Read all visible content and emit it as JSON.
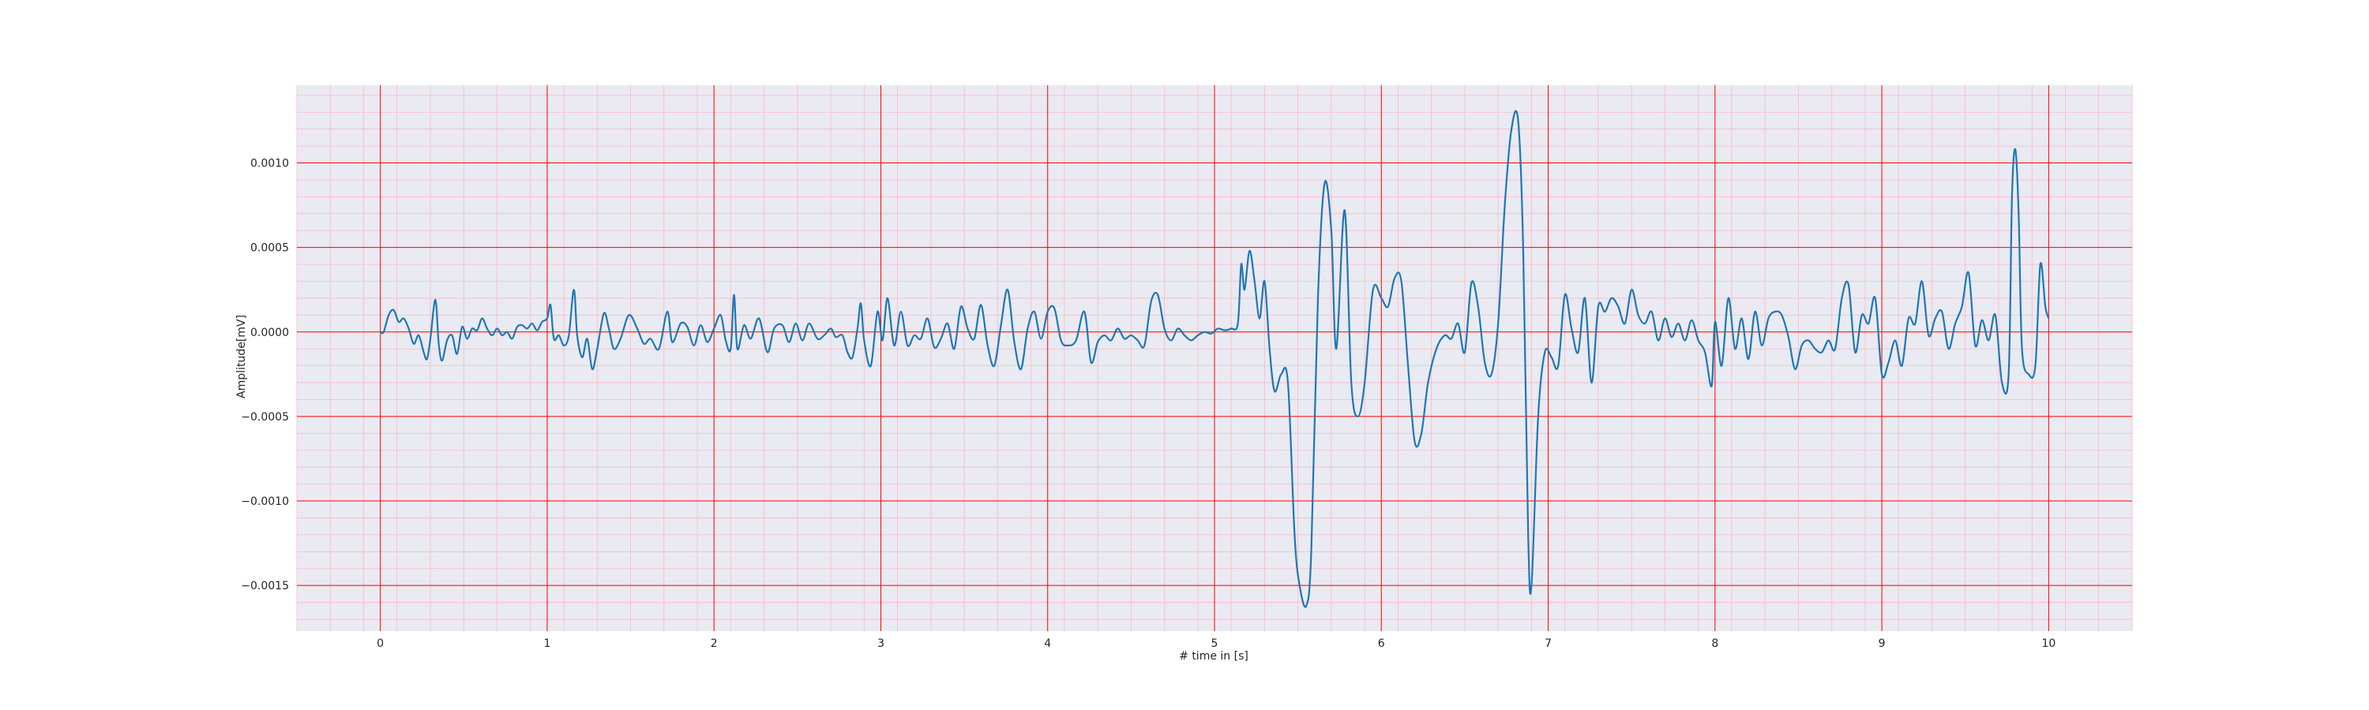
{
  "chart_data": {
    "type": "line",
    "title": "",
    "xlabel": "# time in [s]",
    "ylabel": "Amplitude[mV]",
    "xlim": [
      -0.5,
      10.5
    ],
    "ylim": [
      -0.00177,
      0.00146
    ],
    "x_ticks": [
      0,
      1,
      2,
      3,
      4,
      5,
      6,
      7,
      8,
      9,
      10
    ],
    "x_tick_labels": [
      "0",
      "1",
      "2",
      "3",
      "4",
      "5",
      "6",
      "7",
      "8",
      "9",
      "10"
    ],
    "y_ticks": [
      -0.0015,
      -0.001,
      -0.0005,
      0.0,
      0.0005,
      0.001
    ],
    "y_tick_labels": [
      "−0.0015",
      "−0.0010",
      "−0.0005",
      "0.0000",
      "0.0005",
      "0.0010"
    ],
    "grid": {
      "major": true,
      "minor": true,
      "major_color": "#ff0000",
      "minor_color": "#ffb6c1"
    },
    "background_color": "#eaeaf2",
    "series": [
      {
        "color": "#1f77b4",
        "points": [
          [
            0.0,
            0.0
          ],
          [
            0.02,
            0.0
          ],
          [
            0.05,
            0.0001
          ],
          [
            0.08,
            0.00013
          ],
          [
            0.11,
            6e-05
          ],
          [
            0.14,
            8e-05
          ],
          [
            0.17,
            2e-05
          ],
          [
            0.2,
            -7e-05
          ],
          [
            0.23,
            -2e-05
          ],
          [
            0.26,
            -0.00012
          ],
          [
            0.28,
            -0.00016
          ],
          [
            0.3,
            -4e-05
          ],
          [
            0.33,
            0.00019
          ],
          [
            0.35,
            -7e-05
          ],
          [
            0.37,
            -0.00017
          ],
          [
            0.4,
            -5e-05
          ],
          [
            0.43,
            -2e-05
          ],
          [
            0.46,
            -0.00013
          ],
          [
            0.49,
            3e-05
          ],
          [
            0.52,
            -4e-05
          ],
          [
            0.55,
            2e-05
          ],
          [
            0.58,
            1e-05
          ],
          [
            0.61,
            8e-05
          ],
          [
            0.64,
            2e-05
          ],
          [
            0.67,
            -2e-05
          ],
          [
            0.7,
            2e-05
          ],
          [
            0.73,
            -2e-05
          ],
          [
            0.76,
            0.0
          ],
          [
            0.79,
            -4e-05
          ],
          [
            0.82,
            3e-05
          ],
          [
            0.85,
            4e-05
          ],
          [
            0.88,
            2e-05
          ],
          [
            0.91,
            5e-05
          ],
          [
            0.94,
            1e-05
          ],
          [
            0.97,
            6e-05
          ],
          [
            1.0,
            8e-05
          ],
          [
            1.02,
            0.00016
          ],
          [
            1.04,
            -4e-05
          ],
          [
            1.07,
            -2e-05
          ],
          [
            1.1,
            -8e-05
          ],
          [
            1.13,
            -2e-05
          ],
          [
            1.16,
            0.00025
          ],
          [
            1.18,
            -2e-05
          ],
          [
            1.21,
            -0.00015
          ],
          [
            1.24,
            -4e-05
          ],
          [
            1.27,
            -0.00022
          ],
          [
            1.3,
            -0.0001
          ],
          [
            1.34,
            0.00011
          ],
          [
            1.37,
            2e-05
          ],
          [
            1.4,
            -0.0001
          ],
          [
            1.44,
            -4e-05
          ],
          [
            1.49,
            0.0001
          ],
          [
            1.54,
            2e-05
          ],
          [
            1.58,
            -7e-05
          ],
          [
            1.62,
            -4e-05
          ],
          [
            1.67,
            -0.0001
          ],
          [
            1.72,
            0.00012
          ],
          [
            1.75,
            -6e-05
          ],
          [
            1.8,
            5e-05
          ],
          [
            1.84,
            3e-05
          ],
          [
            1.88,
            -8e-05
          ],
          [
            1.92,
            4e-05
          ],
          [
            1.96,
            -6e-05
          ],
          [
            2.0,
            2e-05
          ],
          [
            2.04,
            0.0001
          ],
          [
            2.07,
            -5e-05
          ],
          [
            2.1,
            -0.0001
          ],
          [
            2.12,
            0.00022
          ],
          [
            2.14,
            -0.0001
          ],
          [
            2.18,
            4e-05
          ],
          [
            2.22,
            -4e-05
          ],
          [
            2.27,
            8e-05
          ],
          [
            2.32,
            -0.00012
          ],
          [
            2.36,
            2e-05
          ],
          [
            2.41,
            4e-05
          ],
          [
            2.45,
            -6e-05
          ],
          [
            2.49,
            5e-05
          ],
          [
            2.53,
            -5e-05
          ],
          [
            2.57,
            5e-05
          ],
          [
            2.62,
            -4e-05
          ],
          [
            2.66,
            -2e-05
          ],
          [
            2.7,
            2e-05
          ],
          [
            2.73,
            -3e-05
          ],
          [
            2.77,
            -2e-05
          ],
          [
            2.8,
            -0.00012
          ],
          [
            2.83,
            -0.00015
          ],
          [
            2.86,
            2e-05
          ],
          [
            2.88,
            0.00017
          ],
          [
            2.9,
            -5e-05
          ],
          [
            2.94,
            -0.0002
          ],
          [
            2.98,
            0.00012
          ],
          [
            3.01,
            -5e-05
          ],
          [
            3.04,
            0.0002
          ],
          [
            3.08,
            -8e-05
          ],
          [
            3.12,
            0.00012
          ],
          [
            3.16,
            -8e-05
          ],
          [
            3.2,
            -2e-05
          ],
          [
            3.24,
            -4e-05
          ],
          [
            3.28,
            8e-05
          ],
          [
            3.32,
            -9e-05
          ],
          [
            3.36,
            -4e-05
          ],
          [
            3.4,
            5e-05
          ],
          [
            3.44,
            -0.0001
          ],
          [
            3.48,
            0.00015
          ],
          [
            3.52,
            2e-05
          ],
          [
            3.56,
            -4e-05
          ],
          [
            3.6,
            0.00016
          ],
          [
            3.64,
            -8e-05
          ],
          [
            3.68,
            -0.0002
          ],
          [
            3.72,
            4e-05
          ],
          [
            3.76,
            0.00025
          ],
          [
            3.8,
            -6e-05
          ],
          [
            3.84,
            -0.00022
          ],
          [
            3.88,
            2e-05
          ],
          [
            3.92,
            0.00012
          ],
          [
            3.96,
            -4e-05
          ],
          [
            4.0,
            0.00012
          ],
          [
            4.04,
            0.00014
          ],
          [
            4.08,
            -5e-05
          ],
          [
            4.12,
            -8e-05
          ],
          [
            4.17,
            -5e-05
          ],
          [
            4.22,
            0.00012
          ],
          [
            4.26,
            -0.00018
          ],
          [
            4.3,
            -6e-05
          ],
          [
            4.34,
            -2e-05
          ],
          [
            4.38,
            -5e-05
          ],
          [
            4.42,
            2e-05
          ],
          [
            4.46,
            -4e-05
          ],
          [
            4.5,
            -2e-05
          ],
          [
            4.54,
            -5e-05
          ],
          [
            4.58,
            -8e-05
          ],
          [
            4.62,
            0.00018
          ],
          [
            4.66,
            0.00022
          ],
          [
            4.7,
            2e-05
          ],
          [
            4.74,
            -5e-05
          ],
          [
            4.78,
            2e-05
          ],
          [
            4.82,
            -2e-05
          ],
          [
            4.86,
            -5e-05
          ],
          [
            4.9,
            -2e-05
          ],
          [
            4.94,
            0.0
          ],
          [
            4.98,
            -1e-05
          ],
          [
            5.02,
            2e-05
          ],
          [
            5.06,
            1e-05
          ],
          [
            5.1,
            2e-05
          ],
          [
            5.14,
            5e-05
          ],
          [
            5.16,
            0.0004
          ],
          [
            5.18,
            0.00025
          ],
          [
            5.21,
            0.00048
          ],
          [
            5.24,
            0.0003
          ],
          [
            5.27,
            8e-05
          ],
          [
            5.3,
            0.0003
          ],
          [
            5.33,
            -0.0001
          ],
          [
            5.36,
            -0.00035
          ],
          [
            5.4,
            -0.00025
          ],
          [
            5.44,
            -0.0003
          ],
          [
            5.48,
            -0.0012
          ],
          [
            5.51,
            -0.0015
          ],
          [
            5.55,
            -0.00162
          ],
          [
            5.58,
            -0.0013
          ],
          [
            5.62,
            0.0002
          ],
          [
            5.66,
            0.00088
          ],
          [
            5.7,
            0.0006
          ],
          [
            5.73,
            -0.0001
          ],
          [
            5.78,
            0.00072
          ],
          [
            5.82,
            -0.0003
          ],
          [
            5.86,
            -0.0005
          ],
          [
            5.9,
            -0.0003
          ],
          [
            5.95,
            0.00025
          ],
          [
            6.0,
            0.0002
          ],
          [
            6.04,
            0.00015
          ],
          [
            6.08,
            0.00032
          ],
          [
            6.12,
            0.0003
          ],
          [
            6.16,
            -0.0002
          ],
          [
            6.2,
            -0.00065
          ],
          [
            6.24,
            -0.0006
          ],
          [
            6.28,
            -0.0003
          ],
          [
            6.33,
            -0.0001
          ],
          [
            6.38,
            -2e-05
          ],
          [
            6.42,
            -4e-05
          ],
          [
            6.46,
            5e-05
          ],
          [
            6.5,
            -0.00012
          ],
          [
            6.54,
            0.00029
          ],
          [
            6.58,
            0.00015
          ],
          [
            6.62,
            -0.00018
          ],
          [
            6.66,
            -0.00025
          ],
          [
            6.7,
            5e-05
          ],
          [
            6.74,
            0.00075
          ],
          [
            6.78,
            0.0012
          ],
          [
            6.82,
            0.00125
          ],
          [
            6.85,
            0.0005
          ],
          [
            6.88,
            -0.0012
          ],
          [
            6.9,
            -0.0015
          ],
          [
            6.94,
            -0.0005
          ],
          [
            6.98,
            -0.00012
          ],
          [
            7.02,
            -0.00015
          ],
          [
            7.06,
            -0.0002
          ],
          [
            7.1,
            0.00022
          ],
          [
            7.14,
            2e-05
          ],
          [
            7.18,
            -0.00012
          ],
          [
            7.22,
            0.0002
          ],
          [
            7.26,
            -0.0003
          ],
          [
            7.3,
            0.00015
          ],
          [
            7.34,
            0.00012
          ],
          [
            7.38,
            0.0002
          ],
          [
            7.42,
            0.00015
          ],
          [
            7.46,
            5e-05
          ],
          [
            7.5,
            0.00025
          ],
          [
            7.54,
            0.0001
          ],
          [
            7.58,
            5e-05
          ],
          [
            7.62,
            0.00012
          ],
          [
            7.66,
            -5e-05
          ],
          [
            7.7,
            8e-05
          ],
          [
            7.74,
            -3e-05
          ],
          [
            7.78,
            5e-05
          ],
          [
            7.82,
            -5e-05
          ],
          [
            7.86,
            7e-05
          ],
          [
            7.9,
            -5e-05
          ],
          [
            7.94,
            -0.00012
          ],
          [
            7.98,
            -0.00032
          ],
          [
            8.0,
            6e-05
          ],
          [
            8.04,
            -0.0002
          ],
          [
            8.08,
            0.0002
          ],
          [
            8.12,
            -0.0001
          ],
          [
            8.16,
            8e-05
          ],
          [
            8.2,
            -0.00016
          ],
          [
            8.24,
            0.00012
          ],
          [
            8.28,
            -8e-05
          ],
          [
            8.32,
            8e-05
          ],
          [
            8.36,
            0.00012
          ],
          [
            8.4,
            0.0001
          ],
          [
            8.44,
            -3e-05
          ],
          [
            8.48,
            -0.00022
          ],
          [
            8.52,
            -8e-05
          ],
          [
            8.56,
            -5e-05
          ],
          [
            8.6,
            -0.0001
          ],
          [
            8.64,
            -0.00012
          ],
          [
            8.68,
            -5e-05
          ],
          [
            8.72,
            -0.0001
          ],
          [
            8.76,
            0.0002
          ],
          [
            8.8,
            0.00028
          ],
          [
            8.84,
            -0.00012
          ],
          [
            8.88,
            0.0001
          ],
          [
            8.92,
            5e-05
          ],
          [
            8.96,
            0.0002
          ],
          [
            9.0,
            -0.00025
          ],
          [
            9.04,
            -0.00018
          ],
          [
            9.08,
            -5e-05
          ],
          [
            9.12,
            -0.0002
          ],
          [
            9.16,
            8e-05
          ],
          [
            9.2,
            5e-05
          ],
          [
            9.24,
            0.0003
          ],
          [
            9.28,
            -2e-05
          ],
          [
            9.32,
            8e-05
          ],
          [
            9.36,
            0.00012
          ],
          [
            9.4,
            -0.0001
          ],
          [
            9.44,
            5e-05
          ],
          [
            9.48,
            0.00015
          ],
          [
            9.52,
            0.00035
          ],
          [
            9.56,
            -8e-05
          ],
          [
            9.6,
            7e-05
          ],
          [
            9.64,
            -5e-05
          ],
          [
            9.68,
            0.0001
          ],
          [
            9.72,
            -0.0003
          ],
          [
            9.76,
            -0.00025
          ],
          [
            9.78,
            0.0008
          ],
          [
            9.8,
            0.00108
          ],
          [
            9.82,
            0.0007
          ],
          [
            9.84,
            -0.0001
          ],
          [
            9.88,
            -0.00025
          ],
          [
            9.92,
            -0.0002
          ],
          [
            9.95,
            0.0004
          ],
          [
            9.98,
            0.00015
          ],
          [
            10.0,
            8e-05
          ]
        ]
      }
    ]
  }
}
